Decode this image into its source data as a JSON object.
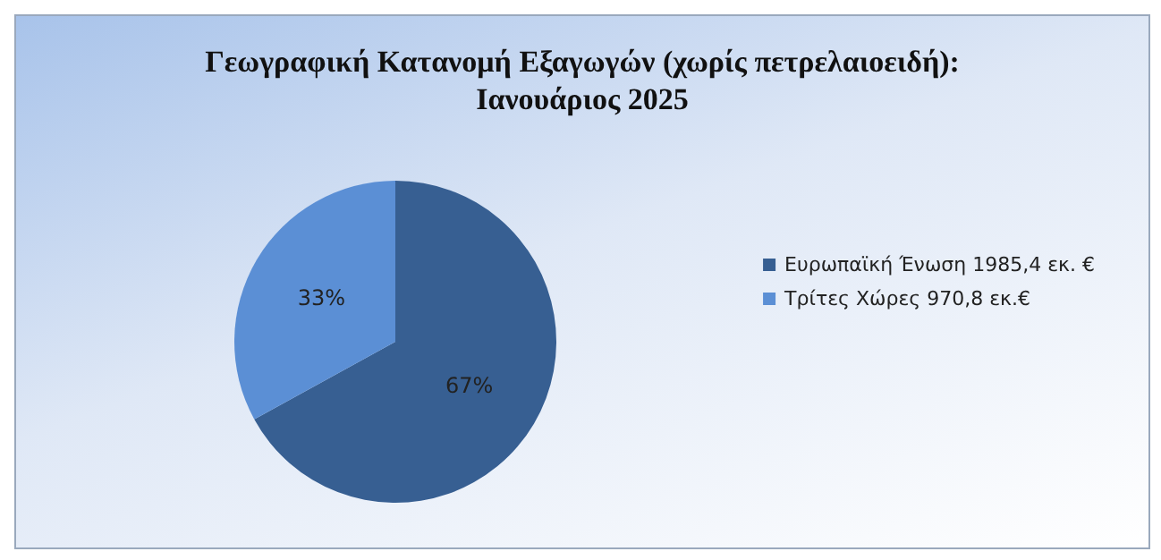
{
  "chart_data": {
    "type": "pie",
    "title": "Γεωγραφική Κατανομή Εξαγωγών (χωρίς πετρελαιοειδή):\nΙανουάριος 2025",
    "categories": [
      "Ευρωπαϊκή Ένωση 1985,4 εκ. €",
      "Τρίτες Χώρες 970,8 εκ.€"
    ],
    "values": [
      67,
      33
    ],
    "colors": [
      "#375f92",
      "#5b8fd5"
    ],
    "value_labels": [
      "67%",
      "33%"
    ],
    "legend": "right"
  }
}
